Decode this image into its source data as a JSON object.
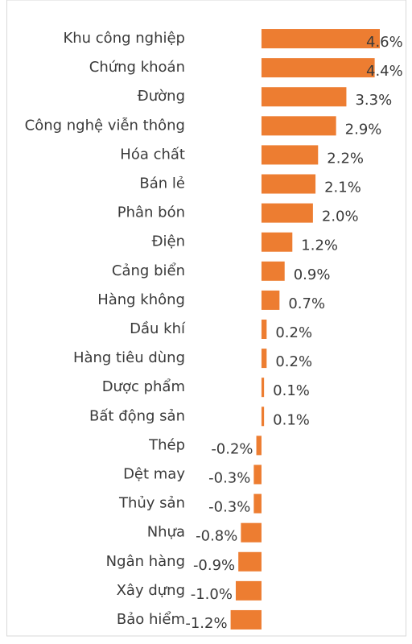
{
  "chart_data": {
    "type": "bar",
    "orientation": "horizontal",
    "categories": [
      "Khu công nghiệp",
      "Chứng khoán",
      "Đường",
      "Công nghệ viễn thông",
      "Hóa chất",
      "Bán lẻ",
      "Phân bón",
      "Điện",
      "Cảng biển",
      "Hàng không",
      "Dầu khí",
      "Hàng tiêu dùng",
      "Dược phẩm",
      "Bất động sản",
      "Thép",
      "Dệt may",
      "Thủy sản",
      "Nhựa",
      "Ngân hàng",
      "Xây dựng",
      "Bảo hiểm"
    ],
    "values": [
      4.6,
      4.4,
      3.3,
      2.9,
      2.2,
      2.1,
      2.0,
      1.2,
      0.9,
      0.7,
      0.2,
      0.2,
      0.1,
      0.1,
      -0.2,
      -0.3,
      -0.3,
      -0.8,
      -0.9,
      -1.0,
      -1.2
    ],
    "value_labels": [
      "4.6%",
      "4.4%",
      "3.3%",
      "2.9%",
      "2.2%",
      "2.1%",
      "2.0%",
      "1.2%",
      "0.9%",
      "0.7%",
      "0.2%",
      "0.2%",
      "0.1%",
      "0.1%",
      "-0.2%",
      "-0.3%",
      "-0.3%",
      "-0.8%",
      "-0.9%",
      "-1.0%",
      "-1.2%"
    ],
    "color": "#ed7d31",
    "xlim": [
      -1.5,
      4.6
    ]
  }
}
